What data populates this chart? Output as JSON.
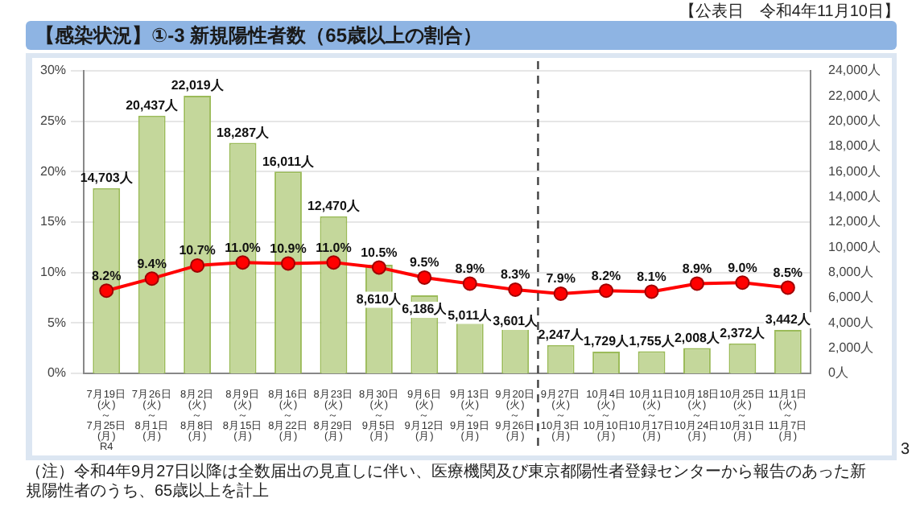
{
  "chart_data": {
    "type": "bar",
    "title": "【感染状況】①-3 新規陽性者数（65歳以上の割合）",
    "categories": [
      "7月19日\n(火)\n～\n7月25日\n(月)\nR4",
      "7月26日\n(火)\n～\n8月1日\n(月)",
      "8月2日\n(火)\n～\n8月8日\n(月)",
      "8月9日\n(火)\n～\n8月15日\n(月)",
      "8月16日\n(火)\n～\n8月22日\n(月)",
      "8月23日\n(火)\n～\n8月29日\n(月)",
      "8月30日\n(火)\n～\n9月5日\n(月)",
      "9月6日\n(火)\n～\n9月12日\n(月)",
      "9月13日\n(火)\n～\n9月19日\n(月)",
      "9月20日\n(火)\n～\n9月26日\n(月)",
      "9月27日\n(火)\n～\n10月3日\n(月)",
      "10月4日\n(火)\n～\n10月10日\n(月)",
      "10月11日\n(火)\n～\n10月17日\n(月)",
      "10月18日\n(火)\n～\n10月24日\n(月)",
      "10月25日\n(火)\n～\n10月31日\n(月)",
      "11月1日\n(火)\n～\n11月7日\n(月)"
    ],
    "series": [
      {
        "axis": "y2",
        "color": "#c4d79b",
        "values": [
          14703,
          20437,
          22019,
          18287,
          16011,
          12470,
          8610,
          6186,
          5011,
          3601,
          2247,
          1729,
          1755,
          2008,
          2372,
          3442
        ],
        "value_labels": [
          "14,703人",
          "20,437人",
          "22,019人",
          "18,287人",
          "16,011人",
          "12,470人",
          "8,610人",
          "6,186人",
          "5,011人",
          "3,601人",
          "2,247人",
          "1,729人",
          "1,755人",
          "2,008人",
          "2,372人",
          "3,442人"
        ]
      },
      {
        "type": "line",
        "color": "#ff0000",
        "values": [
          8.2,
          9.4,
          10.7,
          11.0,
          10.9,
          11.0,
          10.5,
          9.5,
          8.9,
          8.3,
          7.9,
          8.2,
          8.1,
          8.9,
          9.0,
          8.5
        ],
        "value_labels": [
          "8.2%",
          "9.4%",
          "10.7%",
          "11.0%",
          "10.9%",
          "11.0%",
          "10.5%",
          "9.5%",
          "8.9%",
          "8.3%",
          "7.9%",
          "8.2%",
          "8.1%",
          "8.9%",
          "9.0%",
          "8.5%"
        ]
      }
    ],
    "marker": "circle",
    "line_style": "solid",
    "ylim": [
      0,
      30
    ],
    "yticks": [
      {
        "value": 0,
        "label": "0%"
      },
      {
        "value": 5,
        "label": "5%"
      },
      {
        "value": 10,
        "label": "10%"
      },
      {
        "value": 15,
        "label": "15%"
      },
      {
        "value": 20,
        "label": "20%"
      },
      {
        "value": 25,
        "label": "25%"
      },
      {
        "value": 30,
        "label": "30%"
      }
    ],
    "y2lim": [
      0,
      24000
    ],
    "y2ticks": [
      {
        "value": 0,
        "label": "0人"
      },
      {
        "value": 2000,
        "label": "2,000人"
      },
      {
        "value": 4000,
        "label": "4,000人"
      },
      {
        "value": 6000,
        "label": "6,000人"
      },
      {
        "value": 8000,
        "label": "8,000人"
      },
      {
        "value": 10000,
        "label": "10,000人"
      },
      {
        "value": 12000,
        "label": "12,000人"
      },
      {
        "value": 14000,
        "label": "14,000人"
      },
      {
        "value": 16000,
        "label": "16,000人"
      },
      {
        "value": 18000,
        "label": "18,000人"
      },
      {
        "value": 20000,
        "label": "20,000人"
      },
      {
        "value": 22000,
        "label": "22,000人"
      },
      {
        "value": 24000,
        "label": "24,000人"
      }
    ],
    "grid": "y",
    "legend": false,
    "ref_lines": [
      {
        "axis": "x",
        "value": "9月27日\n(火)\n～\n10月3日\n(月)",
        "color": "#404040",
        "line_style": "dashed"
      }
    ],
    "annotations": [
      "【公表日　令和4年11月10日】",
      "（注）令和4年9月27日以降は全数届出の見直しに伴い、医療機関及び東京都陽性者登録センターから報告のあった新規陽性者のうち、65歳以上を計上",
      "3"
    ]
  }
}
